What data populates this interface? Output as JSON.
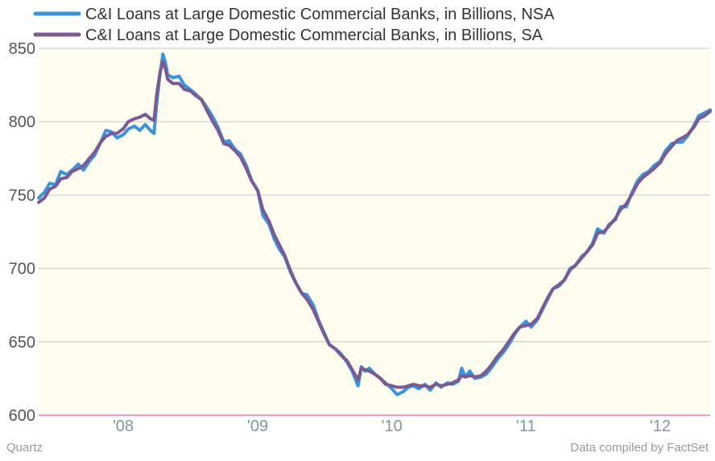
{
  "chart_data": {
    "type": "line",
    "title": "",
    "xlabel": "",
    "ylabel": "",
    "ylim": [
      600,
      850
    ],
    "xlim": [
      "2007-05-16",
      "2012-05-16"
    ],
    "y_ticks": [
      "600",
      "650",
      "700",
      "750",
      "800",
      "850"
    ],
    "x_ticks": [
      {
        "label": "'08",
        "date": "2008-01-01"
      },
      {
        "label": "'09",
        "date": "2009-01-01"
      },
      {
        "label": "'10",
        "date": "2010-01-01"
      },
      {
        "label": "'11",
        "date": "2011-01-01"
      },
      {
        "label": "'12",
        "date": "2012-01-01"
      }
    ],
    "grid": "horizontal",
    "legend_position": "top-left",
    "background_color": "#fffdf0",
    "gridline_color": "#c8c8c8",
    "baseline_color": "#e25bd6",
    "series": [
      {
        "name": "C&I Loans at Large Domestic Commercial Banks, in Billions, NSA",
        "color": "#3a93df",
        "points": [
          [
            "2007-05-16",
            748
          ],
          [
            "2007-06-01",
            752
          ],
          [
            "2007-06-15",
            758
          ],
          [
            "2007-07-01",
            757
          ],
          [
            "2007-07-15",
            766
          ],
          [
            "2007-08-01",
            764
          ],
          [
            "2007-08-15",
            767
          ],
          [
            "2007-09-01",
            771
          ],
          [
            "2007-09-15",
            767
          ],
          [
            "2007-10-01",
            773
          ],
          [
            "2007-10-15",
            777
          ],
          [
            "2007-11-01",
            786
          ],
          [
            "2007-11-15",
            794
          ],
          [
            "2007-12-01",
            793
          ],
          [
            "2007-12-15",
            789
          ],
          [
            "2008-01-01",
            791
          ],
          [
            "2008-01-15",
            795
          ],
          [
            "2008-02-01",
            797
          ],
          [
            "2008-02-15",
            794
          ],
          [
            "2008-03-01",
            798
          ],
          [
            "2008-03-15",
            794
          ],
          [
            "2008-03-25",
            792
          ],
          [
            "2008-04-01",
            812
          ],
          [
            "2008-04-10",
            832
          ],
          [
            "2008-04-18",
            846
          ],
          [
            "2008-04-25",
            840
          ],
          [
            "2008-05-01",
            832
          ],
          [
            "2008-05-15",
            830
          ],
          [
            "2008-06-01",
            831
          ],
          [
            "2008-06-15",
            825
          ],
          [
            "2008-07-01",
            822
          ],
          [
            "2008-07-15",
            819
          ],
          [
            "2008-08-01",
            815
          ],
          [
            "2008-08-15",
            810
          ],
          [
            "2008-09-01",
            803
          ],
          [
            "2008-09-15",
            796
          ],
          [
            "2008-10-01",
            786
          ],
          [
            "2008-10-15",
            787
          ],
          [
            "2008-11-01",
            781
          ],
          [
            "2008-11-15",
            778
          ],
          [
            "2008-12-01",
            770
          ],
          [
            "2008-12-15",
            760
          ],
          [
            "2009-01-01",
            753
          ],
          [
            "2009-01-15",
            736
          ],
          [
            "2009-02-01",
            730
          ],
          [
            "2009-02-15",
            720
          ],
          [
            "2009-03-01",
            713
          ],
          [
            "2009-03-15",
            708
          ],
          [
            "2009-04-01",
            697
          ],
          [
            "2009-04-15",
            690
          ],
          [
            "2009-05-01",
            683
          ],
          [
            "2009-05-15",
            682
          ],
          [
            "2009-06-01",
            675
          ],
          [
            "2009-06-15",
            665
          ],
          [
            "2009-07-01",
            656
          ],
          [
            "2009-07-15",
            648
          ],
          [
            "2009-08-01",
            645
          ],
          [
            "2009-08-15",
            642
          ],
          [
            "2009-09-01",
            636
          ],
          [
            "2009-09-15",
            630
          ],
          [
            "2009-10-01",
            620
          ],
          [
            "2009-10-10",
            633
          ],
          [
            "2009-10-20",
            630
          ],
          [
            "2009-11-01",
            632
          ],
          [
            "2009-11-15",
            628
          ],
          [
            "2009-12-01",
            625
          ],
          [
            "2009-12-15",
            622
          ],
          [
            "2010-01-01",
            618
          ],
          [
            "2010-01-15",
            614
          ],
          [
            "2010-02-01",
            616
          ],
          [
            "2010-02-15",
            619
          ],
          [
            "2010-03-01",
            620
          ],
          [
            "2010-03-15",
            618
          ],
          [
            "2010-04-01",
            621
          ],
          [
            "2010-04-15",
            617
          ],
          [
            "2010-05-01",
            622
          ],
          [
            "2010-05-15",
            619
          ],
          [
            "2010-06-01",
            622
          ],
          [
            "2010-06-15",
            621
          ],
          [
            "2010-07-01",
            623
          ],
          [
            "2010-07-10",
            632
          ],
          [
            "2010-07-20",
            626
          ],
          [
            "2010-08-01",
            630
          ],
          [
            "2010-08-15",
            625
          ],
          [
            "2010-09-01",
            626
          ],
          [
            "2010-09-15",
            628
          ],
          [
            "2010-10-01",
            633
          ],
          [
            "2010-10-15",
            638
          ],
          [
            "2010-11-01",
            643
          ],
          [
            "2010-11-15",
            648
          ],
          [
            "2010-12-01",
            655
          ],
          [
            "2010-12-15",
            660
          ],
          [
            "2011-01-01",
            664
          ],
          [
            "2011-01-15",
            660
          ],
          [
            "2011-02-01",
            665
          ],
          [
            "2011-02-15",
            672
          ],
          [
            "2011-03-01",
            679
          ],
          [
            "2011-03-15",
            686
          ],
          [
            "2011-04-01",
            688
          ],
          [
            "2011-04-15",
            692
          ],
          [
            "2011-05-01",
            700
          ],
          [
            "2011-05-15",
            702
          ],
          [
            "2011-06-01",
            708
          ],
          [
            "2011-06-15",
            711
          ],
          [
            "2011-07-01",
            717
          ],
          [
            "2011-07-15",
            727
          ],
          [
            "2011-08-01",
            724
          ],
          [
            "2011-08-15",
            730
          ],
          [
            "2011-09-01",
            733
          ],
          [
            "2011-09-15",
            742
          ],
          [
            "2011-10-01",
            742
          ],
          [
            "2011-10-15",
            751
          ],
          [
            "2011-11-01",
            760
          ],
          [
            "2011-11-15",
            764
          ],
          [
            "2011-12-01",
            766
          ],
          [
            "2011-12-15",
            770
          ],
          [
            "2012-01-01",
            773
          ],
          [
            "2012-01-15",
            780
          ],
          [
            "2012-02-01",
            785
          ],
          [
            "2012-02-15",
            786
          ],
          [
            "2012-03-01",
            786
          ],
          [
            "2012-03-15",
            790
          ],
          [
            "2012-04-01",
            797
          ],
          [
            "2012-04-15",
            804
          ],
          [
            "2012-05-01",
            806
          ],
          [
            "2012-05-16",
            808
          ]
        ]
      },
      {
        "name": "C&I Loans at Large Domestic Commercial Banks, in Billions, SA",
        "color": "#7a5a91",
        "points": [
          [
            "2007-05-16",
            745
          ],
          [
            "2007-06-01",
            748
          ],
          [
            "2007-06-15",
            754
          ],
          [
            "2007-07-01",
            756
          ],
          [
            "2007-07-15",
            761
          ],
          [
            "2007-08-01",
            762
          ],
          [
            "2007-08-15",
            766
          ],
          [
            "2007-09-01",
            768
          ],
          [
            "2007-09-15",
            770
          ],
          [
            "2007-10-01",
            775
          ],
          [
            "2007-10-15",
            779
          ],
          [
            "2007-11-01",
            786
          ],
          [
            "2007-11-15",
            790
          ],
          [
            "2007-12-01",
            792
          ],
          [
            "2007-12-15",
            792
          ],
          [
            "2008-01-01",
            795
          ],
          [
            "2008-01-15",
            800
          ],
          [
            "2008-02-01",
            802
          ],
          [
            "2008-02-15",
            803
          ],
          [
            "2008-03-01",
            805
          ],
          [
            "2008-03-15",
            802
          ],
          [
            "2008-03-25",
            801
          ],
          [
            "2008-04-01",
            818
          ],
          [
            "2008-04-10",
            833
          ],
          [
            "2008-04-18",
            841
          ],
          [
            "2008-04-25",
            836
          ],
          [
            "2008-05-01",
            829
          ],
          [
            "2008-05-15",
            826
          ],
          [
            "2008-06-01",
            826
          ],
          [
            "2008-06-15",
            822
          ],
          [
            "2008-07-01",
            821
          ],
          [
            "2008-07-15",
            818
          ],
          [
            "2008-08-01",
            815
          ],
          [
            "2008-08-15",
            808
          ],
          [
            "2008-09-01",
            800
          ],
          [
            "2008-09-15",
            794
          ],
          [
            "2008-10-01",
            785
          ],
          [
            "2008-10-15",
            784
          ],
          [
            "2008-11-01",
            780
          ],
          [
            "2008-11-15",
            776
          ],
          [
            "2008-12-01",
            768
          ],
          [
            "2008-12-15",
            760
          ],
          [
            "2009-01-01",
            753
          ],
          [
            "2009-01-15",
            740
          ],
          [
            "2009-02-01",
            732
          ],
          [
            "2009-02-15",
            723
          ],
          [
            "2009-03-01",
            716
          ],
          [
            "2009-03-15",
            709
          ],
          [
            "2009-04-01",
            698
          ],
          [
            "2009-04-15",
            690
          ],
          [
            "2009-05-01",
            683
          ],
          [
            "2009-05-15",
            679
          ],
          [
            "2009-06-01",
            672
          ],
          [
            "2009-06-15",
            664
          ],
          [
            "2009-07-01",
            655
          ],
          [
            "2009-07-15",
            648
          ],
          [
            "2009-08-01",
            645
          ],
          [
            "2009-08-15",
            641
          ],
          [
            "2009-09-01",
            637
          ],
          [
            "2009-09-15",
            631
          ],
          [
            "2009-10-01",
            624
          ],
          [
            "2009-10-10",
            632
          ],
          [
            "2009-10-20",
            631
          ],
          [
            "2009-11-01",
            630
          ],
          [
            "2009-11-15",
            628
          ],
          [
            "2009-12-01",
            625
          ],
          [
            "2009-12-15",
            621
          ],
          [
            "2010-01-01",
            620
          ],
          [
            "2010-01-15",
            619
          ],
          [
            "2010-02-01",
            619
          ],
          [
            "2010-02-15",
            620
          ],
          [
            "2010-03-01",
            621
          ],
          [
            "2010-03-15",
            620
          ],
          [
            "2010-04-01",
            620
          ],
          [
            "2010-04-15",
            619
          ],
          [
            "2010-05-01",
            621
          ],
          [
            "2010-05-15",
            620
          ],
          [
            "2010-06-01",
            621
          ],
          [
            "2010-06-15",
            622
          ],
          [
            "2010-07-01",
            624
          ],
          [
            "2010-07-10",
            627
          ],
          [
            "2010-07-20",
            626
          ],
          [
            "2010-08-01",
            627
          ],
          [
            "2010-08-15",
            626
          ],
          [
            "2010-09-01",
            627
          ],
          [
            "2010-09-15",
            630
          ],
          [
            "2010-10-01",
            635
          ],
          [
            "2010-10-15",
            640
          ],
          [
            "2010-11-01",
            645
          ],
          [
            "2010-11-15",
            650
          ],
          [
            "2010-12-01",
            656
          ],
          [
            "2010-12-15",
            660
          ],
          [
            "2011-01-01",
            661
          ],
          [
            "2011-01-15",
            662
          ],
          [
            "2011-02-01",
            666
          ],
          [
            "2011-02-15",
            673
          ],
          [
            "2011-03-01",
            680
          ],
          [
            "2011-03-15",
            686
          ],
          [
            "2011-04-01",
            689
          ],
          [
            "2011-04-15",
            692
          ],
          [
            "2011-05-01",
            699
          ],
          [
            "2011-05-15",
            702
          ],
          [
            "2011-06-01",
            707
          ],
          [
            "2011-06-15",
            711
          ],
          [
            "2011-07-01",
            716
          ],
          [
            "2011-07-15",
            724
          ],
          [
            "2011-08-01",
            725
          ],
          [
            "2011-08-15",
            729
          ],
          [
            "2011-09-01",
            734
          ],
          [
            "2011-09-15",
            740
          ],
          [
            "2011-10-01",
            744
          ],
          [
            "2011-10-15",
            750
          ],
          [
            "2011-11-01",
            758
          ],
          [
            "2011-11-15",
            762
          ],
          [
            "2011-12-01",
            765
          ],
          [
            "2011-12-15",
            768
          ],
          [
            "2012-01-01",
            772
          ],
          [
            "2012-01-15",
            778
          ],
          [
            "2012-02-01",
            783
          ],
          [
            "2012-02-15",
            787
          ],
          [
            "2012-03-01",
            789
          ],
          [
            "2012-03-15",
            791
          ],
          [
            "2012-04-01",
            796
          ],
          [
            "2012-04-15",
            802
          ],
          [
            "2012-05-01",
            804
          ],
          [
            "2012-05-16",
            807
          ]
        ]
      }
    ]
  },
  "footer": {
    "source_left": "Quartz",
    "source_right": "Data compiled by FactSet"
  }
}
